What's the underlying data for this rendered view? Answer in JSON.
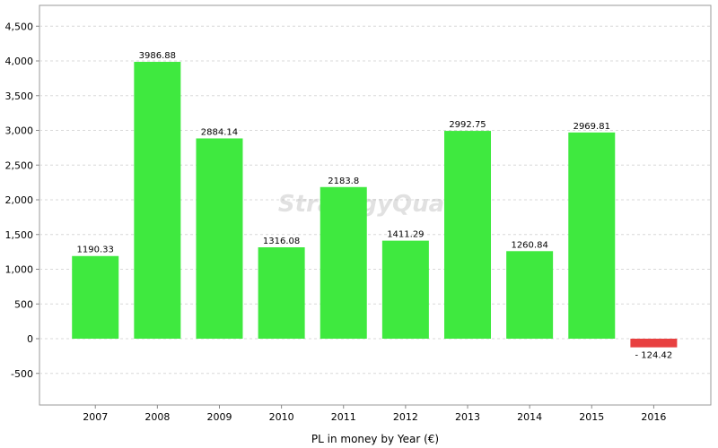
{
  "chart_data": {
    "type": "bar",
    "categories": [
      "2007",
      "2008",
      "2009",
      "2010",
      "2011",
      "2012",
      "2013",
      "2014",
      "2015",
      "2016"
    ],
    "values": [
      1190.33,
      3986.88,
      2884.14,
      1316.08,
      2183.8,
      1411.29,
      2992.75,
      1260.84,
      2969.81,
      -124.42
    ],
    "data_labels": [
      "1190.33",
      "3986.88",
      "2884.14",
      "1316.08",
      "2183.8",
      "1411.29",
      "2992.75",
      "1260.84",
      "2969.81",
      "- 124.42"
    ],
    "xlabel": "PL in money by Year (€)",
    "ylabel": "",
    "ylim": [
      -900,
      4750
    ],
    "yticks": [
      -500,
      0,
      500,
      1000,
      1500,
      2000,
      2500,
      3000,
      3500,
      4000,
      4500
    ],
    "ytick_labels": [
      "-500",
      "0",
      "500",
      "1,000",
      "1,500",
      "2,000",
      "2,500",
      "3,000",
      "3,500",
      "4,000",
      "4,500"
    ],
    "grid": true,
    "watermark": "StrategyQuant",
    "colors": {
      "positive": "#3fe93f",
      "negative": "#e84040",
      "grid": "#d8d8d8",
      "axis": "#888888"
    }
  }
}
